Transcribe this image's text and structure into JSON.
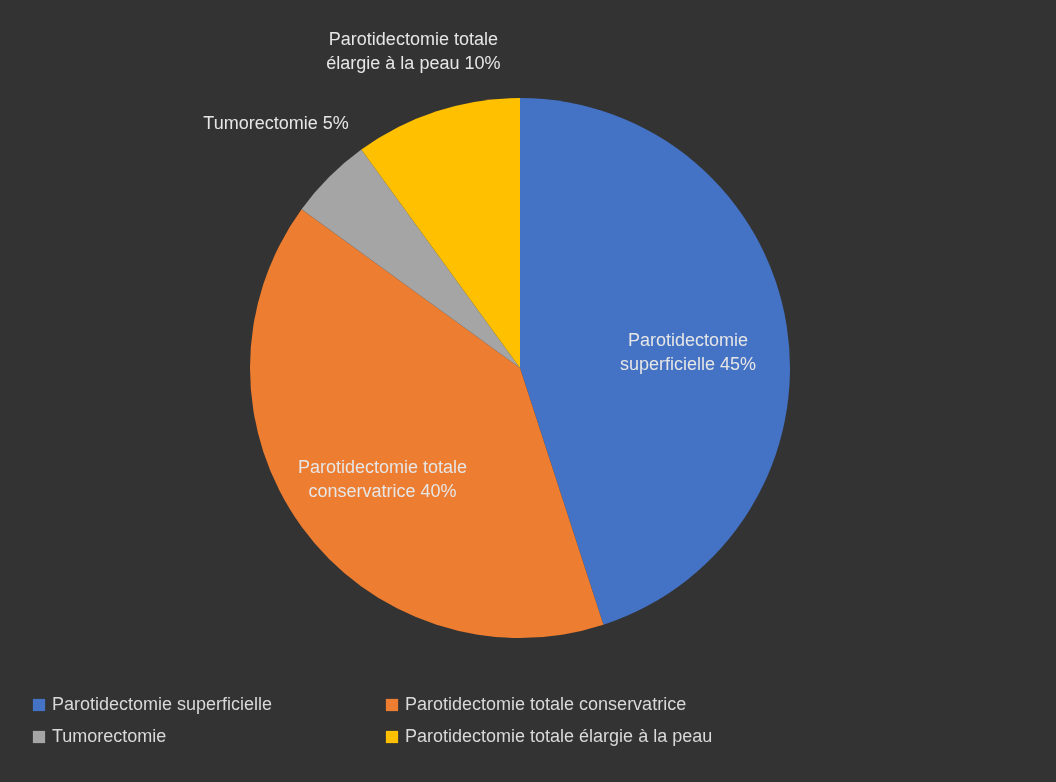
{
  "chart_data": {
    "type": "pie",
    "categories": [
      "Parotidectomie superficielle",
      "Parotidectomie totale conservatrice",
      "Tumorectomie",
      "Parotidectomie totale élargie à la peau"
    ],
    "values": [
      45,
      40,
      5,
      10
    ],
    "colors": [
      "#4472c4",
      "#ed7d31",
      "#a5a5a5",
      "#ffc000"
    ],
    "value_labels": [
      "45%",
      "40%",
      "5%",
      "10%"
    ],
    "legend": "bottom"
  }
}
